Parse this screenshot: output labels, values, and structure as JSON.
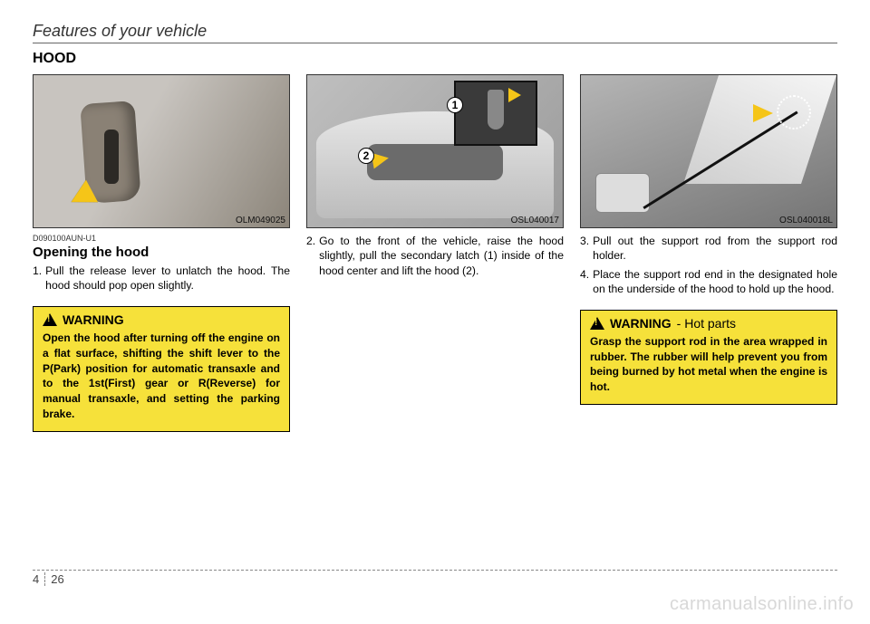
{
  "header": {
    "section_title": "Features of your vehicle"
  },
  "page": {
    "hood_heading": "HOOD",
    "chapter": "4",
    "page_number": "26",
    "watermark": "carmanualsonline.info"
  },
  "col1": {
    "figure_code": "OLM049025",
    "doc_id": "D090100AUN-U1",
    "subheading": "Opening the hood",
    "step": {
      "num": "1.",
      "text": "Pull the release lever to unlatch the hood. The hood should pop open slightly."
    },
    "warning": {
      "title": "WARNING",
      "body": "Open the hood after turning off the engine on a flat surface, shifting the shift lever to the P(Park) position for automatic transaxle and to the 1st(First) gear or R(Reverse) for manual transaxle, and setting the parking brake."
    }
  },
  "col2": {
    "figure_code": "OSL040017",
    "badge1": "1",
    "badge2": "2",
    "step": {
      "num": "2.",
      "text": "Go to the front of the vehicle, raise the hood slightly, pull the secondary latch (1) inside of the hood center and lift the hood (2)."
    }
  },
  "col3": {
    "figure_code": "OSL040018L",
    "step3": {
      "num": "3.",
      "text": "Pull out the support rod from the support rod holder."
    },
    "step4": {
      "num": "4.",
      "text": "Place the support rod end in the designated hole on the underside of the hood to hold up the hood."
    },
    "warning": {
      "title": "WARNING",
      "subtitle": "- Hot parts",
      "body": "Grasp the support rod in the area wrapped in rubber. The rubber will help prevent you from being burned by hot metal when the engine is hot."
    }
  },
  "colors": {
    "warning_bg": "#f6e13a",
    "arrow": "#f5c518",
    "rule": "#666666",
    "watermark": "#d8d8d8"
  }
}
